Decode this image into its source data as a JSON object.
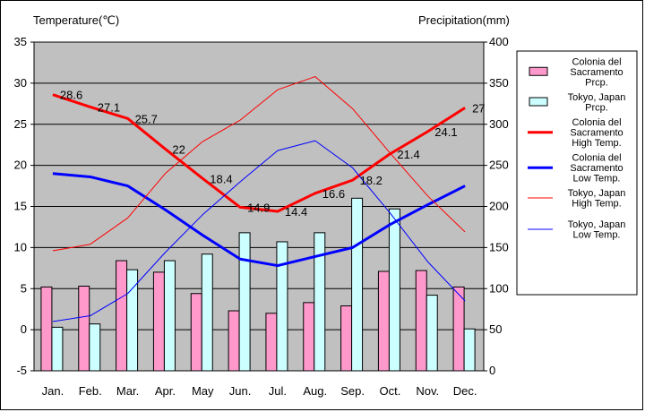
{
  "chart_data": {
    "type": "bar",
    "categories": [
      "Jan.",
      "Feb.",
      "Mar.",
      "Apr.",
      "May",
      "Jun.",
      "Jul.",
      "Aug.",
      "Sep.",
      "Oct.",
      "Nov.",
      "Dec."
    ],
    "y_left_label": "Temperature(℃)",
    "y_right_label": "Precipitation(mm)",
    "y_left_range": [
      -5,
      35
    ],
    "y_left_ticks": [
      -5,
      0,
      5,
      10,
      15,
      20,
      25,
      30,
      35
    ],
    "y_right_range": [
      0,
      400
    ],
    "y_right_ticks": [
      0,
      50,
      100,
      150,
      200,
      250,
      300,
      350,
      400
    ],
    "grid": "horizontal",
    "legend_position": "right",
    "series": [
      {
        "key": "col_prcp",
        "kind": "bar",
        "axis": "right",
        "color": "#ff99cc",
        "legend": [
          "Colonia del",
          "Sacramento",
          "Prcp."
        ],
        "values": [
          102,
          103,
          134,
          120,
          94,
          73,
          70,
          83,
          79,
          121,
          122,
          102
        ]
      },
      {
        "key": "tok_prcp",
        "kind": "bar",
        "axis": "right",
        "color": "#ccffff",
        "legend": [
          "Tokyo, Japan",
          "Prcp."
        ],
        "values": [
          53,
          57,
          123,
          134,
          142,
          168,
          157,
          168,
          210,
          197,
          92,
          51
        ]
      },
      {
        "key": "col_high",
        "kind": "line",
        "axis": "left",
        "color": "#ff0000",
        "width": 3,
        "legend": [
          "Colonia del",
          "Sacramento",
          "High Temp."
        ],
        "values": [
          28.6,
          27.1,
          25.7,
          22,
          18.4,
          14.9,
          14.4,
          16.6,
          18.2,
          21.4,
          24.1,
          27
        ]
      },
      {
        "key": "col_low",
        "kind": "line",
        "axis": "left",
        "color": "#0000ff",
        "width": 3,
        "legend": [
          "Colonia del",
          "Sacramento",
          "Low Temp."
        ],
        "values": [
          19.0,
          18.6,
          17.5,
          14.6,
          11.5,
          8.6,
          7.8,
          8.9,
          10.0,
          12.8,
          15.2,
          17.5
        ]
      },
      {
        "key": "tok_high",
        "kind": "line",
        "axis": "left",
        "color": "#ff0000",
        "width": 1,
        "legend": [
          "Tokyo, Japan",
          "High Temp."
        ],
        "values": [
          9.6,
          10.4,
          13.6,
          19.0,
          22.9,
          25.5,
          29.2,
          30.8,
          26.9,
          21.5,
          16.3,
          11.9
        ]
      },
      {
        "key": "tok_low",
        "kind": "line",
        "axis": "left",
        "color": "#0000ff",
        "width": 1,
        "legend": [
          "Tokyo, Japan",
          "Low Temp."
        ],
        "values": [
          1.0,
          1.7,
          4.4,
          9.4,
          14.0,
          18.0,
          21.8,
          23.0,
          19.7,
          14.2,
          8.3,
          3.5
        ]
      }
    ],
    "data_labels": {
      "series": "col_high",
      "texts": [
        "28.6",
        "27.1",
        "25.7",
        "22",
        "18.4",
        "14.9",
        "14.4",
        "16.6",
        "18.2",
        "21.4",
        "24.1",
        "27"
      ]
    }
  }
}
